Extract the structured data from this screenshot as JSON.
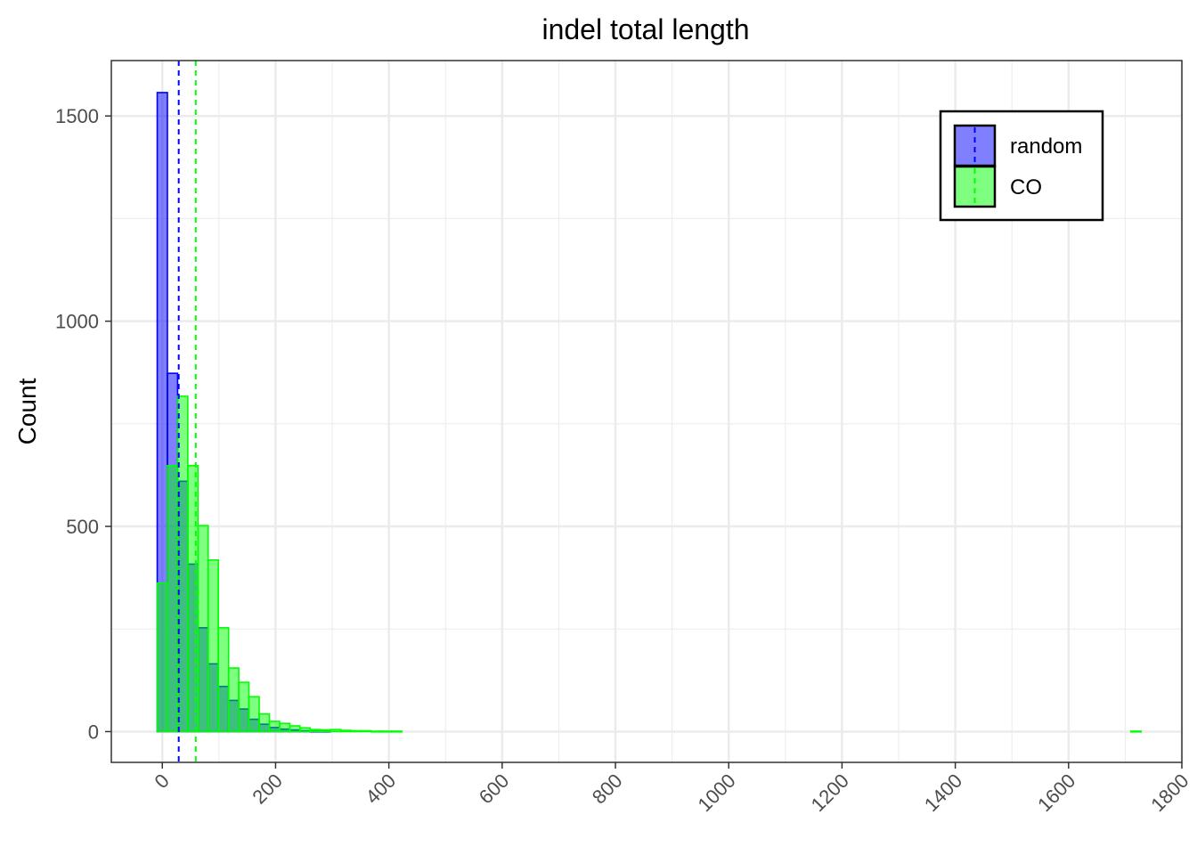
{
  "chart_data": {
    "type": "bar",
    "title": "indel total length",
    "xlabel": "",
    "ylabel": "Count",
    "xlim": [
      -90,
      1800
    ],
    "ylim": [
      -75,
      1635
    ],
    "x_ticks": [
      0,
      200,
      400,
      600,
      800,
      1000,
      1200,
      1400,
      1600,
      1800
    ],
    "y_ticks": [
      0,
      500,
      1000,
      1500
    ],
    "grid": true,
    "legend_position": "top-right",
    "bin_width": 18,
    "series": [
      {
        "name": "random",
        "color": "#0000ff",
        "fill": "#0000ff",
        "fill_opacity": 0.5,
        "mean": 29,
        "bins": [
          {
            "x0": -9,
            "count": 1557
          },
          {
            "x0": 9,
            "count": 873
          },
          {
            "x0": 27,
            "count": 610
          },
          {
            "x0": 45,
            "count": 408
          },
          {
            "x0": 63,
            "count": 253
          },
          {
            "x0": 81,
            "count": 165
          },
          {
            "x0": 99,
            "count": 110
          },
          {
            "x0": 117,
            "count": 76
          },
          {
            "x0": 135,
            "count": 55
          },
          {
            "x0": 153,
            "count": 30
          },
          {
            "x0": 171,
            "count": 18
          },
          {
            "x0": 189,
            "count": 10
          },
          {
            "x0": 207,
            "count": 6
          },
          {
            "x0": 225,
            "count": 4
          },
          {
            "x0": 243,
            "count": 2
          },
          {
            "x0": 261,
            "count": 1
          },
          {
            "x0": 279,
            "count": 1
          }
        ]
      },
      {
        "name": "CO",
        "color": "#00ff00",
        "fill": "#00ff00",
        "fill_opacity": 0.5,
        "mean": 59,
        "bins": [
          {
            "x0": -9,
            "count": 362
          },
          {
            "x0": 9,
            "count": 648
          },
          {
            "x0": 27,
            "count": 817
          },
          {
            "x0": 45,
            "count": 648
          },
          {
            "x0": 63,
            "count": 502
          },
          {
            "x0": 81,
            "count": 418
          },
          {
            "x0": 99,
            "count": 253
          },
          {
            "x0": 117,
            "count": 155
          },
          {
            "x0": 135,
            "count": 120
          },
          {
            "x0": 153,
            "count": 85
          },
          {
            "x0": 171,
            "count": 43
          },
          {
            "x0": 189,
            "count": 25
          },
          {
            "x0": 207,
            "count": 20
          },
          {
            "x0": 225,
            "count": 14
          },
          {
            "x0": 243,
            "count": 9
          },
          {
            "x0": 261,
            "count": 5
          },
          {
            "x0": 279,
            "count": 4
          },
          {
            "x0": 297,
            "count": 5
          },
          {
            "x0": 315,
            "count": 3
          },
          {
            "x0": 333,
            "count": 2
          },
          {
            "x0": 351,
            "count": 2
          },
          {
            "x0": 369,
            "count": 1
          },
          {
            "x0": 387,
            "count": 1
          },
          {
            "x0": 405,
            "count": 1
          },
          {
            "x0": 1710,
            "count": 1
          }
        ]
      }
    ]
  }
}
